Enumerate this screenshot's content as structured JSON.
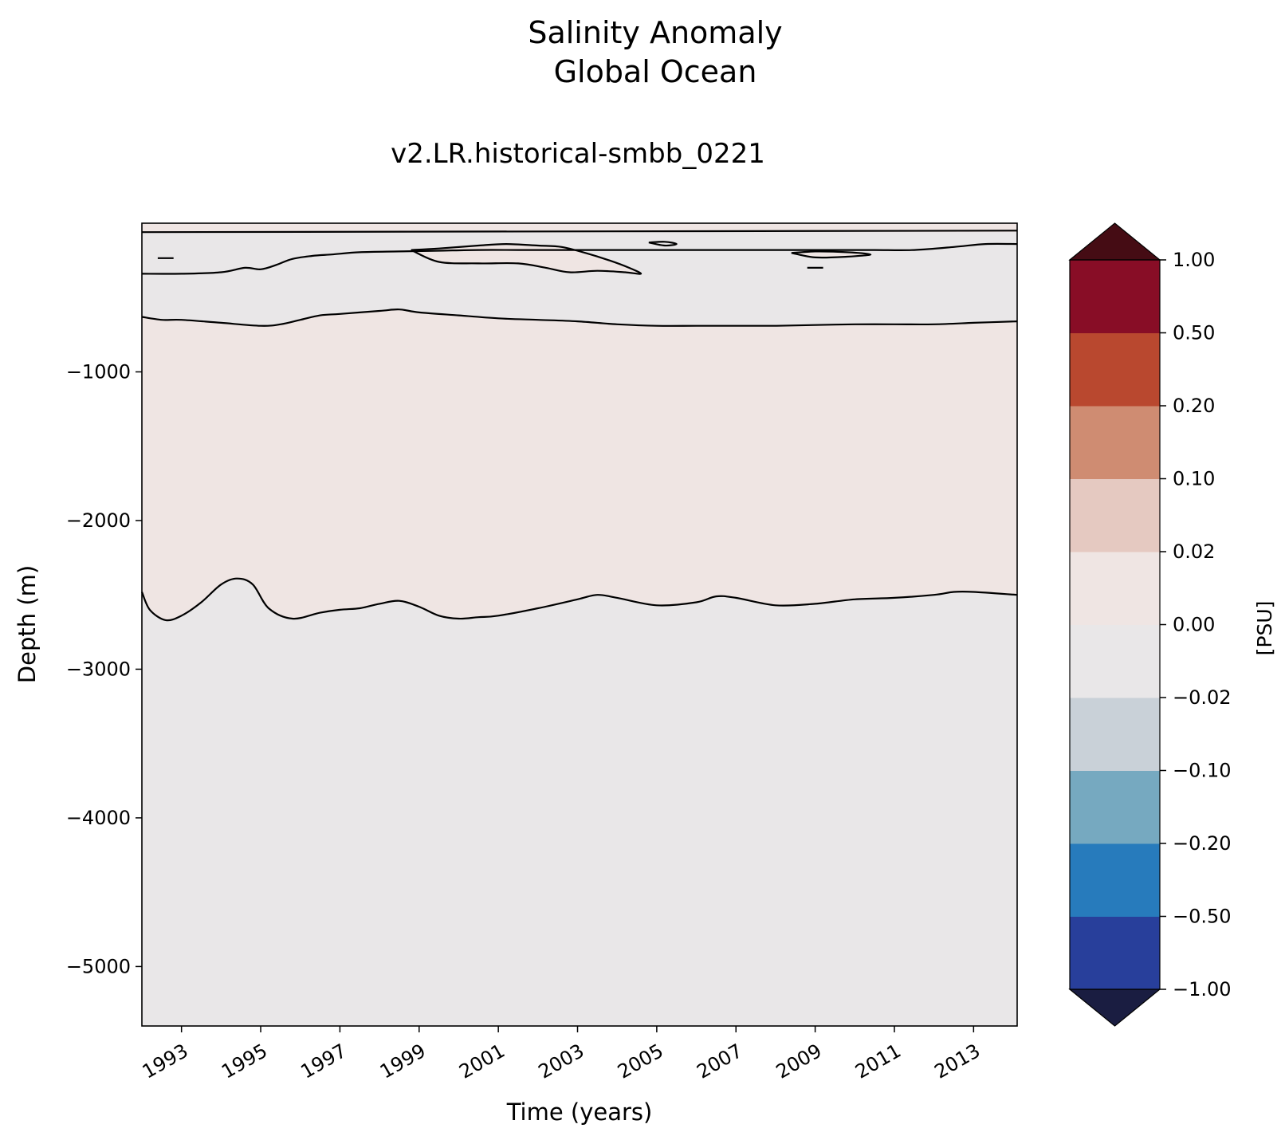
{
  "chart_data": {
    "type": "heatmap",
    "subtype": "filled-contour",
    "title_line1": "Salinity Anomaly",
    "title_line2": "Global Ocean",
    "subtitle": "v2.LR.historical-smbb_0221",
    "xlabel": "Time (years)",
    "ylabel": "Depth (m)",
    "xlim": [
      1992.0,
      2014.1
    ],
    "ylim": [
      -5400,
      0
    ],
    "x_tick_labels": [
      "1993",
      "1995",
      "1997",
      "1999",
      "2001",
      "2003",
      "2005",
      "2007",
      "2009",
      "2011",
      "2013"
    ],
    "x_ticks": [
      1993,
      1995,
      1997,
      1999,
      2001,
      2003,
      2005,
      2007,
      2009,
      2011,
      2013
    ],
    "y_tick_labels": [
      "−1000",
      "−2000",
      "−3000",
      "−4000",
      "−5000"
    ],
    "y_ticks": [
      -1000,
      -2000,
      -3000,
      -4000,
      -5000
    ],
    "colorbar": {
      "label": "[PSU]",
      "levels": [
        -1.0,
        -0.5,
        -0.2,
        -0.1,
        -0.02,
        0.0,
        0.02,
        0.1,
        0.2,
        0.5,
        1.0
      ],
      "tick_labels": [
        "−1.00",
        "−0.50",
        "−0.20",
        "−0.10",
        "−0.02",
        "0.00",
        "0.02",
        "0.10",
        "0.20",
        "0.50",
        "1.00"
      ],
      "colors": [
        "#283f9b",
        "#277bbc",
        "#76a9c0",
        "#c9d1d8",
        "#e9e7e8",
        "#efe5e3",
        "#e5c9c1",
        "#cf8c72",
        "#b9482f",
        "#880d26"
      ],
      "under_color": "#1a1d41",
      "over_color": "#450c14"
    },
    "regions": [
      {
        "name": "near-zero-negative surface band",
        "color": "#e9e7e8",
        "depth_range": [
          -350,
          -80
        ]
      },
      {
        "name": "slightly positive intermediate layer",
        "color": "#efe5e3",
        "depth_range": [
          -2650,
          -650
        ]
      },
      {
        "name": "near-zero-negative deep layer",
        "color": "#e9e7e8",
        "depth_range": [
          -5400,
          -2650
        ]
      }
    ],
    "contours": [
      {
        "name": "upper boundary of positive layer",
        "x": [
          1992.0,
          1992.5,
          1993.0,
          1994.0,
          1995.0,
          1995.5,
          1996.0,
          1996.5,
          1997.0,
          1998.0,
          1998.5,
          1999.0,
          2000.0,
          2001.0,
          2002.0,
          2003.0,
          2004.0,
          2005.0,
          2006.0,
          2007.0,
          2008.0,
          2009.0,
          2010.0,
          2011.0,
          2012.0,
          2013.0,
          2014.1
        ],
        "y": [
          -630,
          -650,
          -650,
          -670,
          -690,
          -680,
          -650,
          -620,
          -610,
          -590,
          -580,
          -600,
          -620,
          -640,
          -650,
          -660,
          -680,
          -690,
          -690,
          -690,
          -690,
          -685,
          -680,
          -680,
          -680,
          -670,
          -660
        ]
      },
      {
        "name": "lower boundary of positive layer",
        "x": [
          1992.0,
          1992.2,
          1992.6,
          1993.0,
          1993.5,
          1994.0,
          1994.4,
          1994.8,
          1995.2,
          1995.8,
          1996.5,
          1997.0,
          1997.5,
          1998.0,
          1998.5,
          1999.0,
          1999.5,
          2000.0,
          2000.5,
          2001.0,
          2002.0,
          2003.0,
          2003.5,
          2004.0,
          2005.0,
          2006.0,
          2006.5,
          2007.0,
          2008.0,
          2009.0,
          2010.0,
          2011.0,
          2012.0,
          2012.5,
          2013.0,
          2014.1
        ],
        "y": [
          -2480,
          -2600,
          -2670,
          -2640,
          -2550,
          -2430,
          -2390,
          -2430,
          -2590,
          -2660,
          -2620,
          -2600,
          -2590,
          -2560,
          -2540,
          -2580,
          -2640,
          -2660,
          -2650,
          -2640,
          -2590,
          -2530,
          -2500,
          -2520,
          -2570,
          -2550,
          -2510,
          -2520,
          -2570,
          -2560,
          -2530,
          -2520,
          -2500,
          -2480,
          -2480,
          -2500
        ]
      },
      {
        "name": "surface band lower boundary",
        "x": [
          1992.0,
          1993.0,
          1994.0,
          1994.6,
          1995.0,
          1995.4,
          1995.8,
          1996.3,
          1996.8,
          1997.5,
          1998.5,
          1999.5,
          2000.5,
          2001.5,
          2002.5,
          2003.5,
          2004.5,
          2005.5,
          2006.5,
          2007.5,
          2008.5,
          2009.5,
          2010.5,
          2011.5,
          2012.5,
          2013.3,
          2014.1
        ],
        "y": [
          -340,
          -340,
          -330,
          -300,
          -310,
          -280,
          -240,
          -220,
          -210,
          -195,
          -190,
          -185,
          -180,
          -180,
          -180,
          -180,
          -180,
          -180,
          -180,
          -180,
          -180,
          -180,
          -180,
          -180,
          -160,
          -140,
          -140
        ]
      },
      {
        "name": "shallow positive patch 1998-2004",
        "x": [
          1998.8,
          1999.5,
          2000.5,
          2001.2,
          2002.0,
          2002.6,
          2003.2,
          2003.8,
          2004.3,
          2004.6,
          2004.2,
          2003.5,
          2002.8,
          2002.2,
          2001.5,
          2000.5,
          1999.5,
          1998.8
        ],
        "y": [
          -180,
          -170,
          -150,
          -140,
          -150,
          -160,
          -200,
          -250,
          -300,
          -340,
          -330,
          -320,
          -330,
          -300,
          -270,
          -270,
          -260,
          -180
        ]
      },
      {
        "name": "shallow positive patch 2008-2010",
        "x": [
          2008.4,
          2009.0,
          2009.8,
          2010.4,
          2009.8,
          2009.0,
          2008.4
        ],
        "y": [
          -200,
          -190,
          -195,
          -210,
          -225,
          -230,
          -200
        ]
      },
      {
        "name": "small cell 2005",
        "x": [
          2004.8,
          2005.2,
          2005.5,
          2005.2,
          2004.8
        ],
        "y": [
          -130,
          -125,
          -140,
          -150,
          -130
        ]
      },
      {
        "name": "small cell 2008-2009",
        "x": [
          2008.8,
          2009.0,
          2009.2
        ],
        "y": [
          -300,
          -300,
          -300
        ]
      },
      {
        "name": "small cell 1992",
        "x": [
          1992.4,
          1992.6,
          1992.8
        ],
        "y": [
          -235,
          -235,
          -235
        ]
      }
    ]
  }
}
